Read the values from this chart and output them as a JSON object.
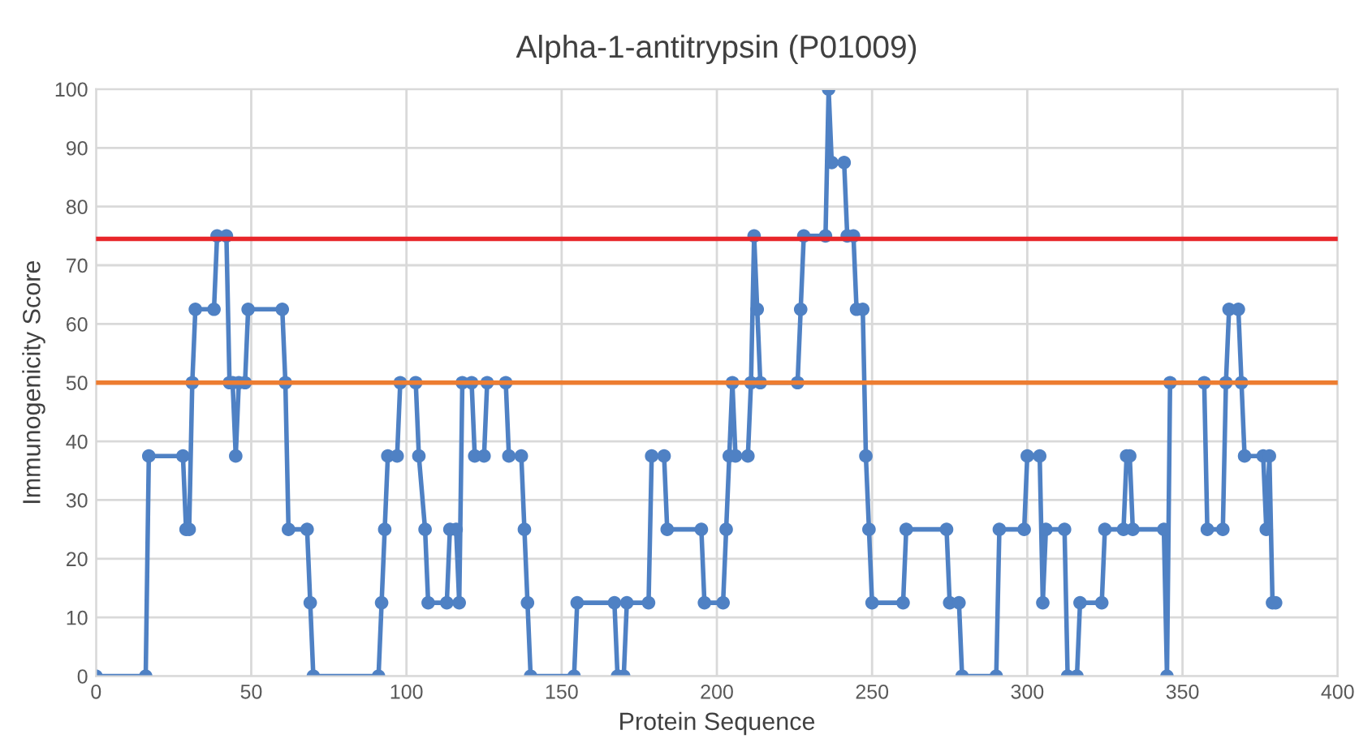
{
  "chart_data": {
    "type": "line",
    "title": "Alpha-1-antitrypsin (P01009)",
    "xlabel": "Protein Sequence",
    "ylabel": "Immunogenicity Score",
    "x": [
      0,
      16,
      17,
      28,
      29,
      30,
      31,
      32,
      38,
      39,
      42,
      43,
      44,
      45,
      46,
      48,
      49,
      60,
      61,
      62,
      68,
      69,
      70,
      91,
      92,
      93,
      94,
      97,
      98,
      103,
      104,
      106,
      107,
      113,
      114,
      116,
      117,
      118,
      121,
      122,
      125,
      126,
      132,
      133,
      137,
      138,
      139,
      140,
      154,
      155,
      167,
      168,
      170,
      171,
      178,
      179,
      183,
      184,
      195,
      196,
      202,
      203,
      204,
      205,
      206,
      210,
      211,
      212,
      213,
      214,
      226,
      227,
      228,
      235,
      236,
      237,
      241,
      242,
      244,
      245,
      247,
      248,
      249,
      250,
      260,
      261,
      274,
      275,
      278,
      279,
      290,
      291,
      299,
      300,
      304,
      305,
      306,
      312,
      313,
      316,
      317,
      324,
      325,
      331,
      332,
      333,
      334,
      344,
      345,
      346,
      357,
      358,
      363,
      364,
      365,
      368,
      369,
      370,
      376,
      377,
      378,
      379,
      380
    ],
    "series": [
      {
        "color": "#4f81c4",
        "values": [
          0,
          0,
          37.5,
          37.5,
          25,
          25,
          50,
          62.5,
          62.5,
          75,
          75,
          50,
          50,
          37.5,
          50,
          50,
          62.5,
          62.5,
          50,
          25,
          25,
          12.5,
          0,
          0,
          12.5,
          25,
          37.5,
          37.5,
          50,
          50,
          37.5,
          25,
          12.5,
          12.5,
          25,
          25,
          12.5,
          50,
          50,
          37.5,
          37.5,
          50,
          50,
          37.5,
          37.5,
          25,
          12.5,
          0,
          0,
          12.5,
          12.5,
          0,
          0,
          12.5,
          12.5,
          37.5,
          37.5,
          25,
          25,
          12.5,
          12.5,
          25,
          37.5,
          50,
          37.5,
          37.5,
          50,
          75,
          62.5,
          50,
          50,
          62.5,
          75,
          75,
          100,
          87.5,
          87.5,
          75,
          75,
          62.5,
          62.5,
          37.5,
          25,
          12.5,
          12.5,
          25,
          25,
          12.5,
          12.5,
          0,
          0,
          25,
          25,
          37.5,
          37.5,
          12.5,
          25,
          25,
          0,
          0,
          12.5,
          12.5,
          25,
          25,
          37.5,
          37.5,
          25,
          25,
          0,
          50,
          50,
          25,
          25,
          50,
          62.5,
          62.5,
          50,
          37.5,
          37.5,
          25,
          37.5,
          12.5,
          12.5
        ]
      }
    ],
    "xlim": [
      0,
      400
    ],
    "xticks": [
      0,
      50,
      100,
      150,
      200,
      250,
      300,
      350,
      400
    ],
    "ylim": [
      0,
      100
    ],
    "yticks": [
      0,
      10,
      20,
      30,
      40,
      50,
      60,
      70,
      80,
      90,
      100
    ],
    "ref_lines": [
      {
        "axis": "y",
        "value": 74.5,
        "color": "#e8262a"
      },
      {
        "axis": "y",
        "value": 50,
        "color": "#ed7d31"
      }
    ],
    "grid": true,
    "marker": "circle",
    "line_style": "solid",
    "legend": false
  }
}
